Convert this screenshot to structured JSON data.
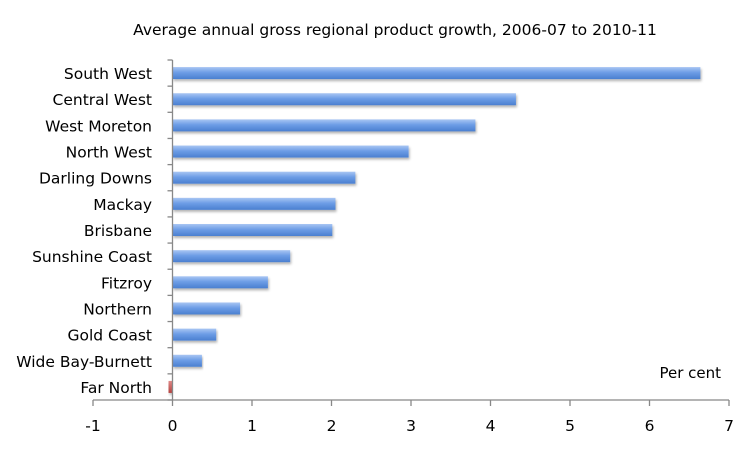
{
  "chart_data": {
    "type": "bar",
    "orientation": "horizontal",
    "title": "Average annual gross regional product growth, 2006-07 to 2010-11",
    "xlabel": "Per cent",
    "ylabel": "",
    "xlim": [
      -1,
      7
    ],
    "xticks": [
      "-1",
      "0",
      "1",
      "2",
      "3",
      "4",
      "5",
      "6",
      "7"
    ],
    "categories": [
      "South West",
      "Central West",
      "West Moreton",
      "North West",
      "Darling Downs",
      "Mackay",
      "Brisbane",
      "Sunshine Coast",
      "Fitzroy",
      "Northern",
      "Gold Coast",
      "Wide Bay-Burnett",
      "Far North"
    ],
    "values": [
      6.64,
      4.32,
      3.81,
      2.97,
      2.3,
      2.05,
      2.01,
      1.48,
      1.2,
      0.85,
      0.55,
      0.37,
      -0.05
    ],
    "colors": {
      "positive": "#5b8fde",
      "negative": "#c0504d"
    },
    "grid": false,
    "legend": "none"
  }
}
